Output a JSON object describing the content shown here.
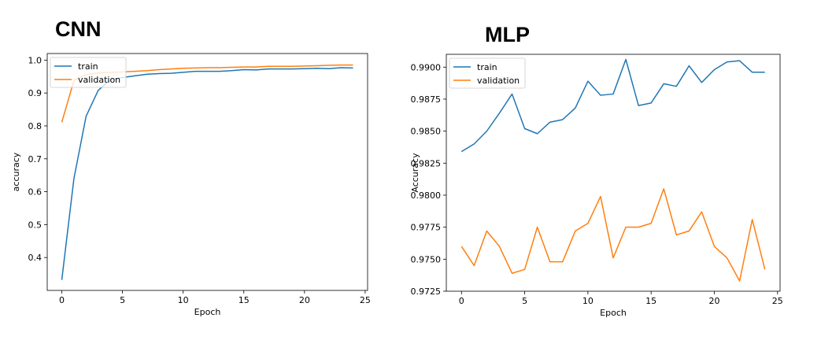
{
  "chart_data": [
    {
      "type": "line",
      "title": "CNN",
      "xlabel": "Epoch",
      "ylabel": "accuracy",
      "xlim": [
        -1.2,
        25.2
      ],
      "ylim": [
        0.3,
        1.02
      ],
      "xticks": [
        0,
        5,
        10,
        15,
        20,
        25
      ],
      "yticks": [
        0.4,
        0.5,
        0.6,
        0.7,
        0.8,
        0.9,
        1.0
      ],
      "ytick_labels": [
        "0.4",
        "0.5",
        "0.6",
        "0.7",
        "0.8",
        "0.9",
        "1.0"
      ],
      "grid": false,
      "legend": "upper left",
      "x": [
        0,
        1,
        2,
        3,
        4,
        5,
        6,
        7,
        8,
        9,
        10,
        11,
        12,
        13,
        14,
        15,
        16,
        17,
        18,
        19,
        20,
        21,
        22,
        23,
        24
      ],
      "series": [
        {
          "name": "train",
          "color": "#1f77b4",
          "values": [
            0.332,
            0.64,
            0.829,
            0.908,
            0.94,
            0.947,
            0.952,
            0.957,
            0.959,
            0.96,
            0.963,
            0.966,
            0.966,
            0.966,
            0.968,
            0.971,
            0.97,
            0.973,
            0.973,
            0.973,
            0.974,
            0.975,
            0.974,
            0.977,
            0.976
          ]
        },
        {
          "name": "validation",
          "color": "#ff7f0e",
          "values": [
            0.811,
            0.938,
            0.956,
            0.961,
            0.963,
            0.964,
            0.966,
            0.968,
            0.971,
            0.973,
            0.975,
            0.976,
            0.977,
            0.977,
            0.978,
            0.979,
            0.979,
            0.981,
            0.981,
            0.981,
            0.982,
            0.983,
            0.984,
            0.985,
            0.985
          ]
        }
      ]
    },
    {
      "type": "line",
      "title": "MLP",
      "xlabel": "Epoch",
      "ylabel": "Accuracy",
      "xlim": [
        -1.2,
        25.2
      ],
      "ylim": [
        0.9725,
        0.991
      ],
      "xticks": [
        0,
        5,
        10,
        15,
        20,
        25
      ],
      "yticks": [
        0.9725,
        0.975,
        0.9775,
        0.98,
        0.9825,
        0.985,
        0.9875,
        0.99
      ],
      "ytick_labels": [
        "0.9725",
        "0.9750",
        "0.9775",
        "0.9800",
        "0.9825",
        "0.9850",
        "0.9875",
        "0.9900"
      ],
      "grid": false,
      "legend": "upper left",
      "x": [
        0,
        1,
        2,
        3,
        4,
        5,
        6,
        7,
        8,
        9,
        10,
        11,
        12,
        13,
        14,
        15,
        16,
        17,
        18,
        19,
        20,
        21,
        22,
        23,
        24
      ],
      "series": [
        {
          "name": "train",
          "color": "#1f77b4",
          "values": [
            0.9834,
            0.984,
            0.985,
            0.9864,
            0.9879,
            0.9852,
            0.9848,
            0.9857,
            0.9859,
            0.9868,
            0.9889,
            0.9878,
            0.9879,
            0.9906,
            0.987,
            0.9872,
            0.9887,
            0.9885,
            0.9901,
            0.9888,
            0.9898,
            0.9904,
            0.9905,
            0.9896,
            0.9896
          ]
        },
        {
          "name": "validation",
          "color": "#ff7f0e",
          "values": [
            0.976,
            0.9745,
            0.9772,
            0.976,
            0.9739,
            0.9742,
            0.9775,
            0.9748,
            0.9748,
            0.9772,
            0.9778,
            0.9799,
            0.9751,
            0.9775,
            0.9775,
            0.9778,
            0.9805,
            0.9769,
            0.9772,
            0.9787,
            0.976,
            0.9751,
            0.9733,
            0.9781,
            0.9742
          ]
        }
      ]
    }
  ]
}
